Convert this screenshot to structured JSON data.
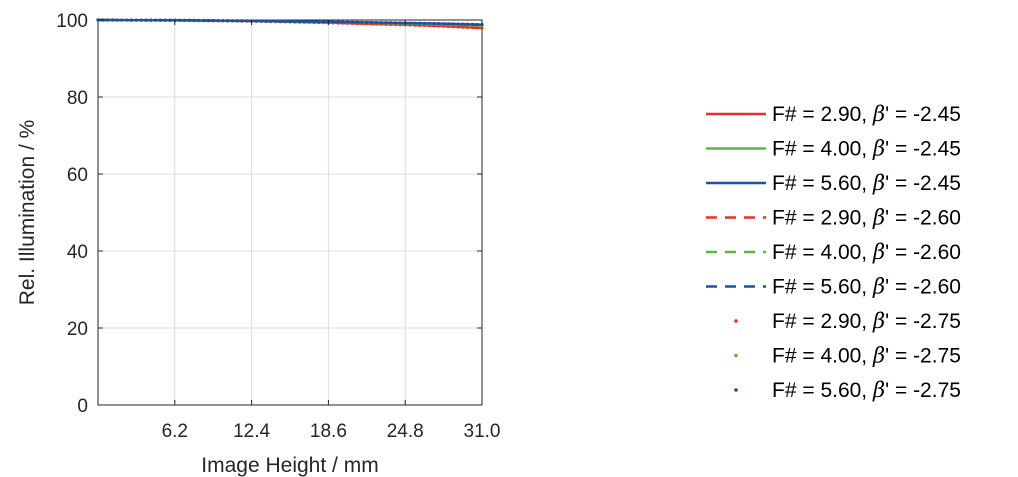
{
  "chart_data": {
    "type": "line",
    "title": "",
    "xlabel": "Image Height / mm",
    "ylabel": "Rel. Illumination / %",
    "xlim": [
      0,
      31.0
    ],
    "ylim": [
      0,
      100
    ],
    "xticks": [
      "6.2",
      "12.4",
      "18.6",
      "24.8",
      "31.0"
    ],
    "yticks": [
      "0",
      "20",
      "40",
      "60",
      "80",
      "100"
    ],
    "grid": true,
    "legend_position": "right",
    "x": [
      0,
      3.1,
      6.2,
      9.3,
      12.4,
      15.5,
      18.6,
      21.7,
      24.8,
      27.9,
      31.0
    ],
    "series": [
      {
        "name": "F# = 2.90, β' = -2.45",
        "label_main": "F# = 2.90, ",
        "label_beta": "β",
        "label_tail": "' = -2.45",
        "color": "#e8302a",
        "style": "solid",
        "values": [
          100,
          99.98,
          99.9,
          99.8,
          99.7,
          99.5,
          99.3,
          99.0,
          98.8,
          98.4,
          97.9
        ]
      },
      {
        "name": "F# = 4.00, β' = -2.45",
        "label_main": "F# = 4.00, ",
        "label_beta": "β",
        "label_tail": "' = -2.45",
        "color": "#5cb83a",
        "style": "solid",
        "values": [
          100,
          99.98,
          99.93,
          99.85,
          99.75,
          99.6,
          99.45,
          99.3,
          99.1,
          98.9,
          98.6
        ]
      },
      {
        "name": "F# = 5.60, β' = -2.45",
        "label_main": "F# = 5.60, ",
        "label_beta": "β",
        "label_tail": "' = -2.45",
        "color": "#1f4fa3",
        "style": "solid",
        "values": [
          100,
          99.98,
          99.93,
          99.87,
          99.78,
          99.65,
          99.52,
          99.38,
          99.22,
          99.05,
          98.8
        ]
      },
      {
        "name": "F# = 2.90, β' = -2.60",
        "label_main": "F# = 2.90, ",
        "label_beta": "β",
        "label_tail": "' = -2.60",
        "color": "#e8302a",
        "style": "dashed",
        "values": [
          100,
          99.98,
          99.9,
          99.8,
          99.68,
          99.5,
          99.3,
          99.0,
          98.75,
          98.4,
          97.9
        ]
      },
      {
        "name": "F# = 4.00, β' = -2.60",
        "label_main": "F# = 4.00, ",
        "label_beta": "β",
        "label_tail": "' = -2.60",
        "color": "#5cb83a",
        "style": "dashed",
        "values": [
          100,
          99.98,
          99.93,
          99.85,
          99.74,
          99.6,
          99.44,
          99.28,
          99.1,
          98.88,
          98.6
        ]
      },
      {
        "name": "F# = 5.60, β' = -2.60",
        "label_main": "F# = 5.60, ",
        "label_beta": "β",
        "label_tail": "' = -2.60",
        "color": "#1f4fa3",
        "style": "dashed",
        "values": [
          100,
          99.98,
          99.93,
          99.87,
          99.78,
          99.65,
          99.52,
          99.37,
          99.22,
          99.04,
          98.8
        ]
      },
      {
        "name": "F# = 2.90, β' = -2.75",
        "label_main": "F# = 2.90, ",
        "label_beta": "β",
        "label_tail": "' = -2.75",
        "color": "#e8302a",
        "style": "dotted",
        "values": [
          100,
          99.98,
          99.9,
          99.8,
          99.68,
          99.5,
          99.3,
          99.0,
          98.75,
          98.4,
          97.9
        ]
      },
      {
        "name": "F# = 4.00, β' = -2.75",
        "label_main": "F# = 4.00, ",
        "label_beta": "β",
        "label_tail": "' = -2.75",
        "color": "#5cb83a",
        "style": "dotted",
        "values": [
          100,
          99.98,
          99.93,
          99.85,
          99.74,
          99.6,
          99.44,
          99.28,
          99.1,
          98.88,
          98.6
        ]
      },
      {
        "name": "F# = 5.60, β' = -2.75",
        "label_main": "F# = 5.60, ",
        "label_beta": "β",
        "label_tail": "' = -2.75",
        "color": "#1f4fa3",
        "style": "dotted",
        "values": [
          100,
          99.98,
          99.93,
          99.87,
          99.78,
          99.65,
          99.52,
          99.37,
          99.22,
          99.04,
          98.8
        ]
      }
    ]
  }
}
